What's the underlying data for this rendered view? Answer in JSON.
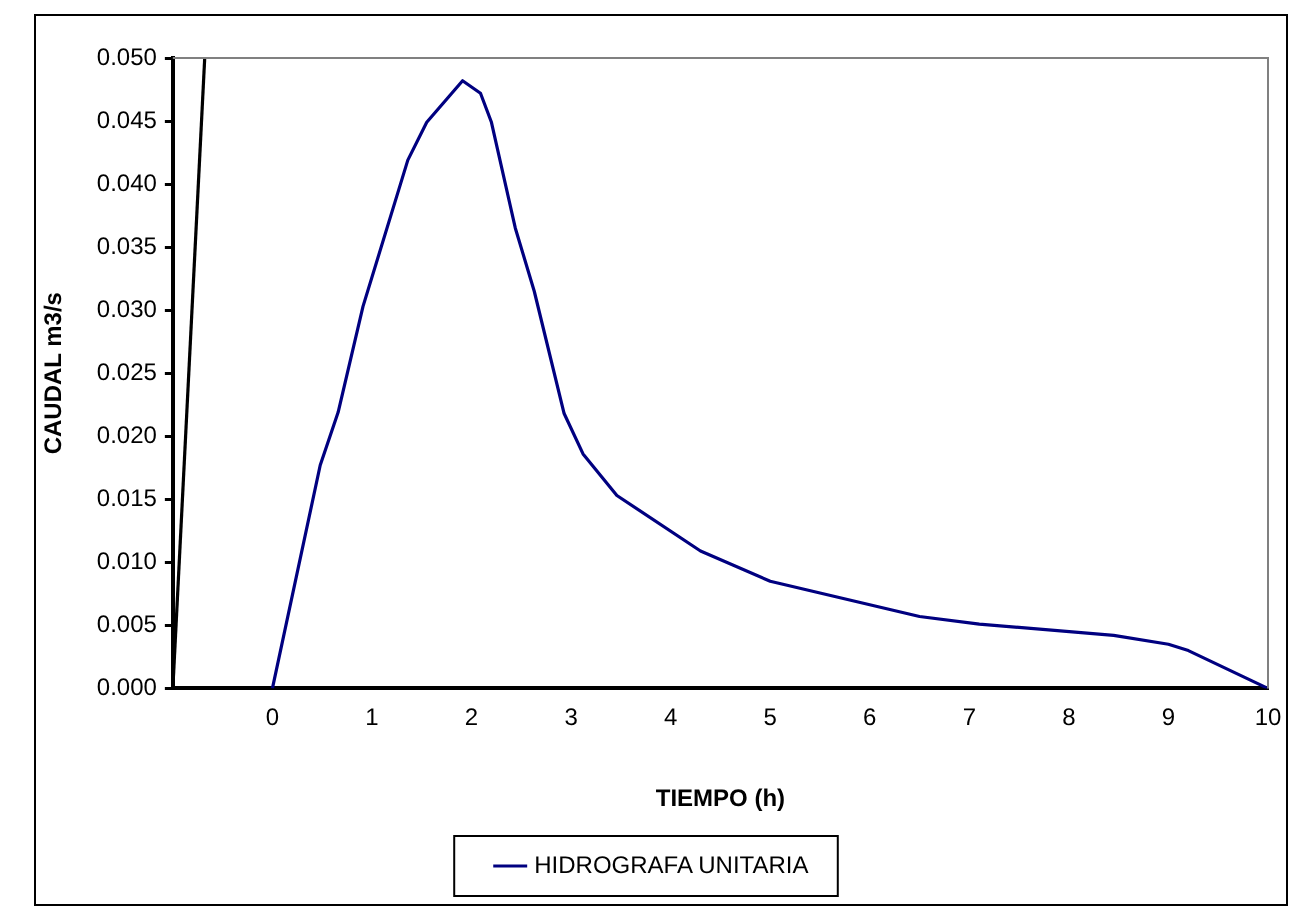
{
  "chart_data": {
    "type": "line",
    "xlabel": "TIEMPO (h)",
    "ylabel": "CAUDAL m3/s",
    "xlim": [
      -1,
      10
    ],
    "xticks": [
      0,
      1,
      2,
      3,
      4,
      5,
      6,
      7,
      8,
      9,
      10
    ],
    "ylim": [
      0,
      0.05
    ],
    "yticks": [
      {
        "value": 0,
        "label": "0.000"
      },
      {
        "value": 0.005,
        "label": "0.005"
      },
      {
        "value": 0.01,
        "label": "0.010"
      },
      {
        "value": 0.015,
        "label": "0.015"
      },
      {
        "value": 0.02,
        "label": "0.020"
      },
      {
        "value": 0.025,
        "label": "0.025"
      },
      {
        "value": 0.03,
        "label": "0.030"
      },
      {
        "value": 0.035,
        "label": "0.035"
      },
      {
        "value": 0.04,
        "label": "0.040"
      },
      {
        "value": 0.045,
        "label": "0.045"
      },
      {
        "value": 0.05,
        "label": "0.050"
      }
    ],
    "grid": false,
    "legend": "bottom",
    "marker": "none",
    "line_style": "solid",
    "series": [
      {
        "name": "HIDROGRAFA UNITARIA",
        "color": "#000080",
        "x": [
          0,
          0.48,
          0.66,
          0.91,
          1.36,
          1.55,
          1.91,
          2.09,
          2.2,
          2.44,
          2.63,
          2.93,
          3.12,
          3.46,
          4.3,
          5.0,
          6.5,
          7.1,
          8.45,
          9.0,
          9.2,
          10
        ],
        "values": [
          0,
          0.0177,
          0.0219,
          0.0303,
          0.0419,
          0.0449,
          0.0482,
          0.0472,
          0.0449,
          0.0365,
          0.0315,
          0.0218,
          0.0186,
          0.0153,
          0.0109,
          0.0085,
          0.0057,
          0.0051,
          0.0042,
          0.0035,
          0.003,
          0
        ]
      },
      {
        "color": "#000000",
        "x": [
          -1,
          -0.68
        ],
        "values": [
          0,
          0.05
        ]
      }
    ]
  }
}
